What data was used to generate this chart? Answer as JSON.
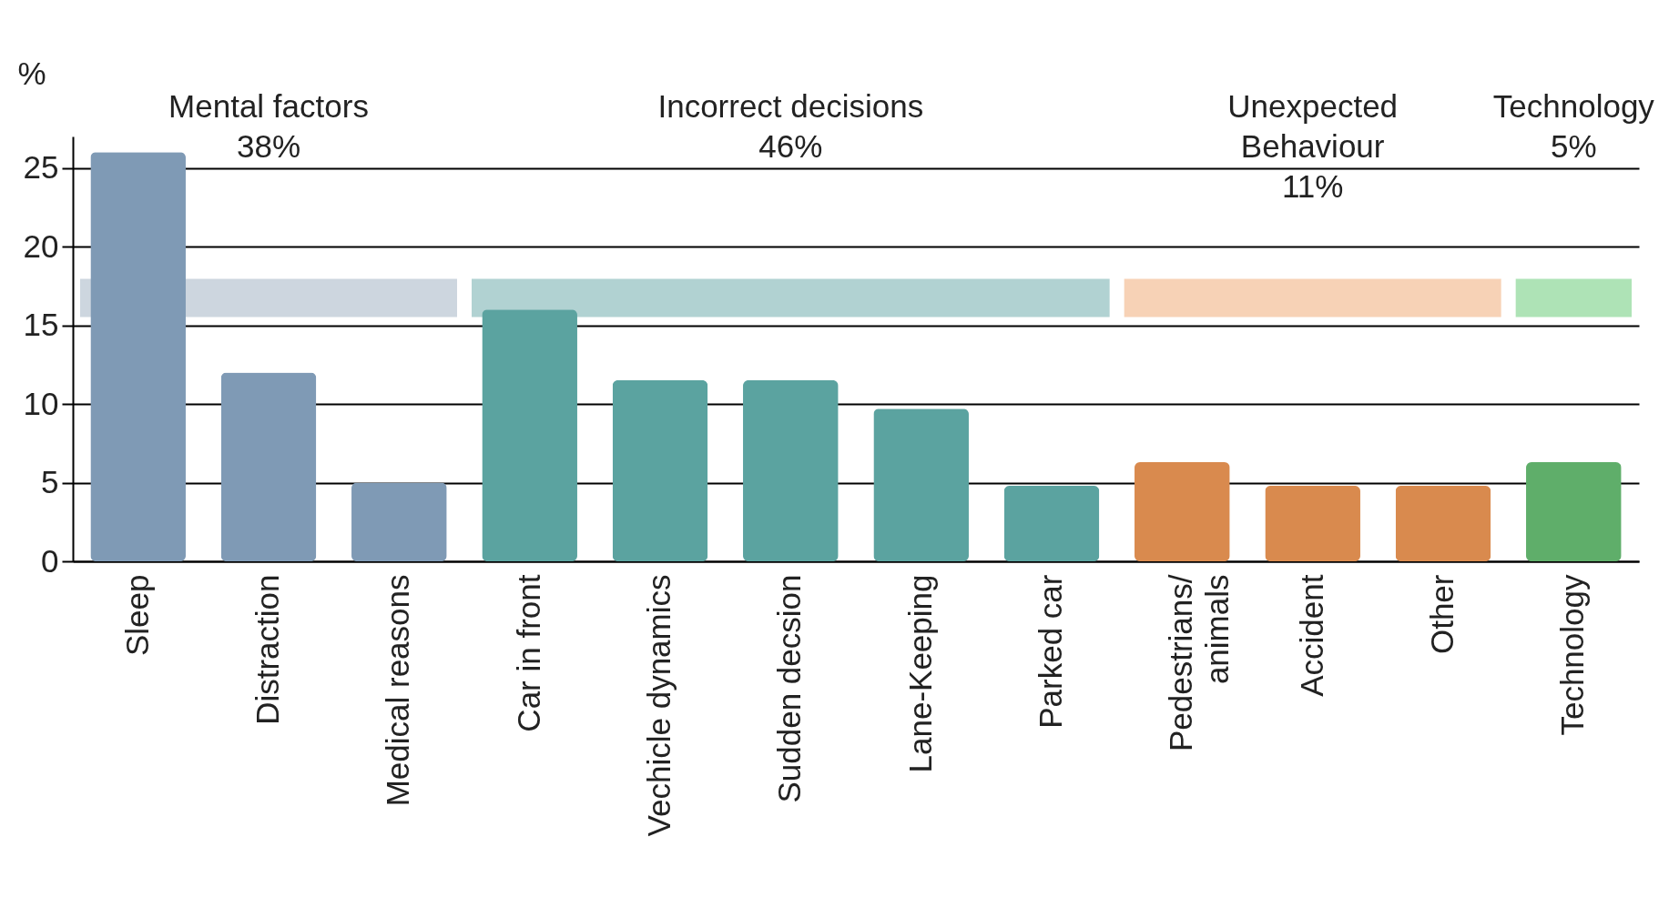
{
  "chart_data": {
    "type": "bar",
    "ylabel": "%",
    "categories": [
      "Sleep",
      "Distraction",
      "Medical reasons",
      "Car in front",
      "Vechicle dynamics",
      "Sudden decsion",
      "Lane-Keeping",
      "Parked car",
      "Pedestrians/\nanimals",
      "Accident",
      "Other",
      "Technology"
    ],
    "values": [
      26,
      12,
      5,
      16,
      11.5,
      11.5,
      9.7,
      4.8,
      6.3,
      4.8,
      4.8,
      6.3
    ],
    "colors": [
      "#7f9ab5",
      "#7f9ab5",
      "#7f9ab5",
      "#5ba3a0",
      "#5ba3a0",
      "#5ba3a0",
      "#5ba3a0",
      "#5ba3a0",
      "#d98a4e",
      "#d98a4e",
      "#d98a4e",
      "#5fae6a"
    ],
    "ylim": [
      0,
      27
    ],
    "yticks": [
      0,
      5,
      10,
      15,
      20,
      25
    ],
    "grid": "y",
    "bands": [
      {
        "axis": "x",
        "from": "Sleep",
        "to": "Medical reasons",
        "color": "#cdd6df"
      },
      {
        "axis": "x",
        "from": "Car in front",
        "to": "Parked car",
        "color": "#b1d2d2"
      },
      {
        "axis": "x",
        "from": "Pedestrians/\nanimals",
        "to": "Other",
        "color": "#f7d2b6"
      },
      {
        "axis": "x",
        "from": "Technology",
        "to": "Technology",
        "color": "#aee3b6"
      }
    ],
    "annotations": [
      "Mental factors\n38%",
      "Incorrect decisions\n46%",
      "Unexpected\nBehaviour\n11%",
      "Technology\n5%"
    ]
  }
}
